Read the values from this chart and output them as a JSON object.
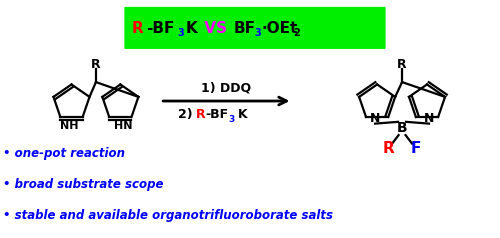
{
  "bg_color": "#ffffff",
  "banner_color": "#00ee00",
  "red_color": "#ff0000",
  "blue_color": "#0000ff",
  "black_color": "#000000",
  "magenta_color": "#ff00ff",
  "bullet_color": "#0000ff",
  "bullet_fontsize": 8.5,
  "bullet_texts": [
    "• one-pot reaction",
    "• broad substrate scope",
    "• stable and available organotrifluoroborate salts"
  ]
}
